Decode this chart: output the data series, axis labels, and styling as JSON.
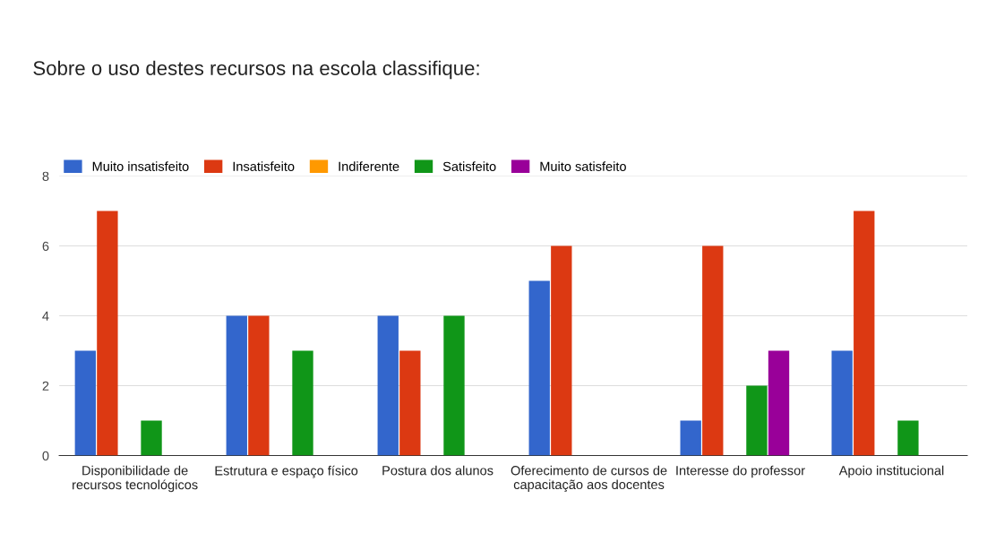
{
  "chart_data": {
    "type": "bar",
    "title": "Sobre o uso destes recursos na escola classifique:",
    "categories": [
      "Disponibilidade de\nrecursos tecnológicos",
      "Estrutura e espaço físico",
      "Postura dos alunos",
      "Oferecimento de cursos de\ncapacitação aos docentes",
      "Interesse do professor",
      "Apoio institucional"
    ],
    "series": [
      {
        "name": "Muito insatisfeito",
        "color": "#3366cc",
        "values": [
          3,
          4,
          4,
          5,
          1,
          3
        ]
      },
      {
        "name": "Insatisfeito",
        "color": "#dc3912",
        "values": [
          7,
          4,
          3,
          6,
          6,
          7
        ]
      },
      {
        "name": "Indiferente",
        "color": "#ff9900",
        "values": [
          0,
          0,
          0,
          0,
          0,
          0
        ]
      },
      {
        "name": "Satisfeito",
        "color": "#109618",
        "values": [
          1,
          3,
          4,
          0,
          2,
          1
        ]
      },
      {
        "name": "Muito satisfeito",
        "color": "#990099",
        "values": [
          0,
          0,
          0,
          0,
          3,
          0
        ]
      }
    ],
    "ylim": [
      0,
      8
    ],
    "yticks": [
      0,
      2,
      4,
      6,
      8
    ],
    "grid": "y",
    "legend": "top left"
  }
}
